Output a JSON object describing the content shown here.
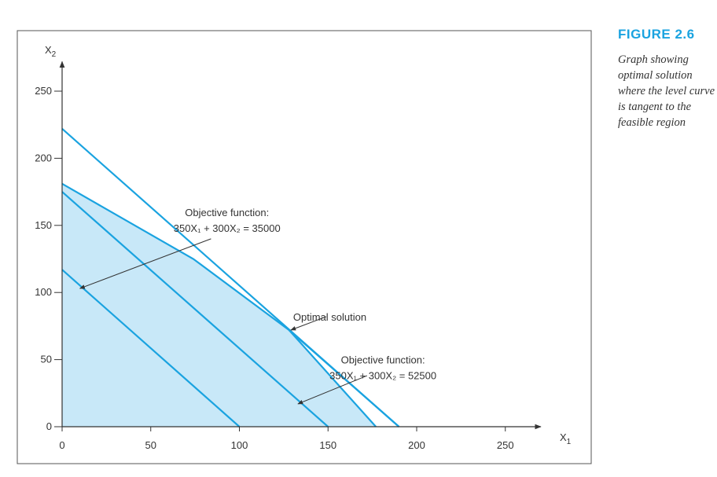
{
  "figure": {
    "label": "FIGURE 2.6",
    "caption": "Graph showing optimal solution where the level curve is tangent to the feasible region"
  },
  "colors": {
    "line": "#1aa3e0",
    "fill": "#c8e8f8",
    "frame": "#555555",
    "text": "#333333"
  },
  "chart_data": {
    "type": "line",
    "title": "",
    "xlabel": "X1",
    "ylabel": "X2",
    "xlim": [
      0,
      270
    ],
    "ylim": [
      0,
      272
    ],
    "x_ticks": [
      0,
      50,
      100,
      150,
      200,
      250
    ],
    "y_ticks": [
      0,
      50,
      100,
      150,
      200,
      250
    ],
    "grid": false,
    "feasible_region": [
      [
        0,
        0
      ],
      [
        0,
        181
      ],
      [
        74,
        125
      ],
      [
        128,
        72
      ],
      [
        177,
        0
      ]
    ],
    "series": [
      {
        "values": [
          [
            0,
            222
          ],
          [
            190,
            0
          ]
        ]
      },
      {
        "values": [
          [
            0,
            181
          ],
          [
            74,
            125
          ],
          [
            128,
            72
          ],
          [
            190,
            0
          ]
        ]
      },
      {
        "values": [
          [
            0,
            175
          ],
          [
            150,
            0
          ]
        ]
      },
      {
        "values": [
          [
            0,
            117
          ],
          [
            100,
            0
          ]
        ]
      },
      {
        "values": [
          [
            128,
            72
          ],
          [
            177,
            0
          ]
        ]
      }
    ],
    "optimal_point": [
      128,
      72
    ],
    "annotations": [
      {
        "line1": "Objective function:",
        "line2": "350X₁ + 300X₂ = 35000",
        "text_at": [
          93,
          157
        ],
        "arrow_from": [
          84,
          140
        ],
        "arrow_to": [
          10,
          103
        ]
      },
      {
        "line1": "Optimal solution",
        "text_at": [
          151,
          79
        ],
        "arrow_from": [
          149,
          82
        ],
        "arrow_to": [
          129,
          72
        ]
      },
      {
        "line1": "Objective function:",
        "line2": "350X₁ + 300X₂ = 52500",
        "text_at": [
          181,
          47
        ],
        "arrow_from": [
          172,
          38
        ],
        "arrow_to": [
          133,
          17
        ]
      }
    ]
  }
}
